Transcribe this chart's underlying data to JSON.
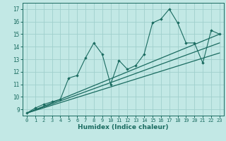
{
  "xlabel": "Humidex (Indice chaleur)",
  "ylabel": "",
  "bg_color": "#c2e8e5",
  "grid_color": "#a0cfcc",
  "line_color": "#1a6b60",
  "xlim": [
    -0.5,
    23.5
  ],
  "ylim": [
    8.5,
    17.5
  ],
  "xticks": [
    0,
    1,
    2,
    3,
    4,
    5,
    6,
    7,
    8,
    9,
    10,
    11,
    12,
    13,
    14,
    15,
    16,
    17,
    18,
    19,
    20,
    21,
    22,
    23
  ],
  "yticks": [
    9,
    10,
    11,
    12,
    13,
    14,
    15,
    16,
    17
  ],
  "scatter_x": [
    0,
    1,
    2,
    3,
    4,
    5,
    6,
    7,
    8,
    9,
    10,
    11,
    12,
    13,
    14,
    15,
    16,
    17,
    18,
    19,
    20,
    21,
    22,
    23
  ],
  "scatter_y": [
    8.7,
    9.1,
    9.4,
    9.6,
    9.8,
    11.5,
    11.7,
    13.1,
    14.3,
    13.4,
    11.0,
    12.9,
    12.2,
    12.5,
    13.4,
    15.9,
    16.2,
    17.0,
    15.9,
    14.3,
    14.3,
    12.7,
    15.3,
    15.0
  ],
  "line1_x": [
    0,
    23
  ],
  "line1_y": [
    8.7,
    14.3
  ],
  "line2_x": [
    0,
    23
  ],
  "line2_y": [
    8.7,
    15.0
  ],
  "line3_x": [
    0,
    23
  ],
  "line3_y": [
    8.7,
    13.5
  ]
}
